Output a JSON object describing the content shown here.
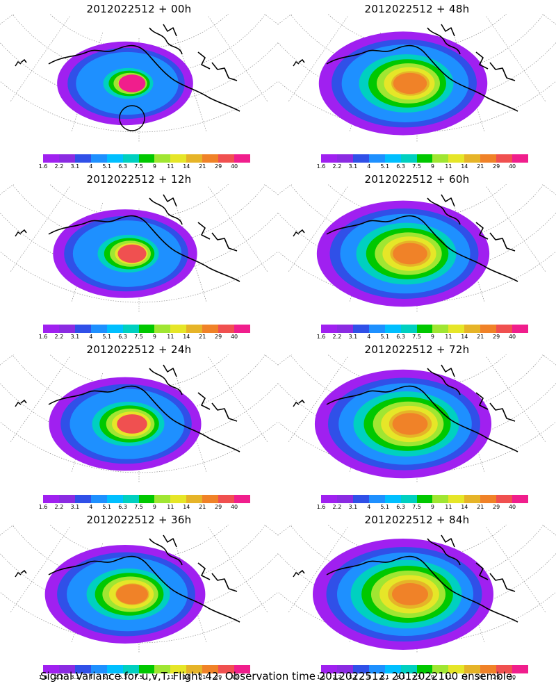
{
  "panels": [
    {
      "title": "2012022512 + 00h",
      "spread": 0.45,
      "peak": "magenta",
      "circle": true
    },
    {
      "title": "2012022512 + 48h",
      "spread": 0.85,
      "peak": "orange",
      "circle": false
    },
    {
      "title": "2012022512 + 12h",
      "spread": 0.55,
      "peak": "red",
      "circle": false
    },
    {
      "title": "2012022512 + 60h",
      "spread": 0.9,
      "peak": "orange",
      "circle": false
    },
    {
      "title": "2012022512 + 24h",
      "spread": 0.65,
      "peak": "red",
      "circle": false
    },
    {
      "title": "2012022512 + 72h",
      "spread": 0.95,
      "peak": "orange",
      "circle": false
    },
    {
      "title": "2012022512 + 36h",
      "spread": 0.75,
      "peak": "orange",
      "circle": false
    },
    {
      "title": "2012022512 + 84h",
      "spread": 1.0,
      "peak": "orange",
      "circle": false
    }
  ],
  "colorbar": {
    "labels": [
      "1.6",
      "2.2",
      "3.1",
      "4",
      "5.1",
      "6.3",
      "7.5",
      "9",
      "11",
      "14",
      "21",
      "29",
      "40"
    ],
    "colors": [
      "#a020f0",
      "#8b2be2",
      "#3050e8",
      "#1e90ff",
      "#00bfff",
      "#00d0c0",
      "#00c800",
      "#a0e632",
      "#e6e628",
      "#e6b428",
      "#f08228",
      "#f05050",
      "#f01e8c"
    ]
  },
  "caption": "Signal Variance for u,v,T. Flight 42. Observation time 2012022512. 2012022100 ensemble."
}
